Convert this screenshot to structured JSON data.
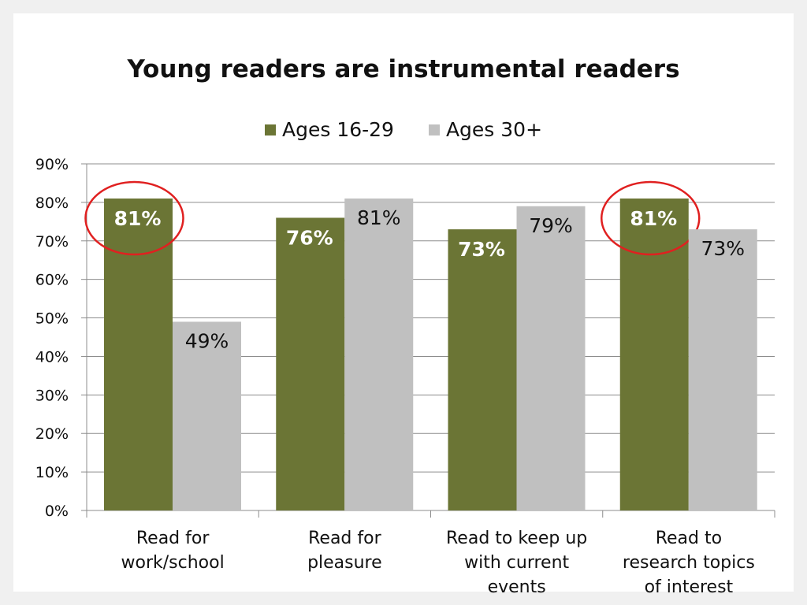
{
  "chart_data": {
    "type": "bar",
    "title": "Young readers are instrumental readers",
    "categories": [
      [
        "Read for",
        "work/school"
      ],
      [
        "Read for",
        "pleasure"
      ],
      [
        "Read to keep up",
        "with current",
        "events"
      ],
      [
        "Read to",
        "research topics",
        "of interest"
      ]
    ],
    "series": [
      {
        "name": "Ages 16-29",
        "color": "#6b7535",
        "values": [
          81,
          76,
          73,
          81
        ]
      },
      {
        "name": "Ages 30+",
        "color": "#c0c0c0",
        "values": [
          49,
          81,
          79,
          73
        ]
      }
    ],
    "value_labels": [
      [
        "81%",
        "76%",
        "73%",
        "81%"
      ],
      [
        "49%",
        "81%",
        "79%",
        "73%"
      ]
    ],
    "ylim": [
      0,
      90
    ],
    "yticks": [
      "0%",
      "10%",
      "20%",
      "30%",
      "40%",
      "50%",
      "60%",
      "70%",
      "80%",
      "90%"
    ],
    "grid": true,
    "legend": "top-center",
    "highlighted_bars": [
      {
        "series": 0,
        "category": 0
      },
      {
        "series": 0,
        "category": 3
      }
    ],
    "highlight_color": "#e02020"
  }
}
